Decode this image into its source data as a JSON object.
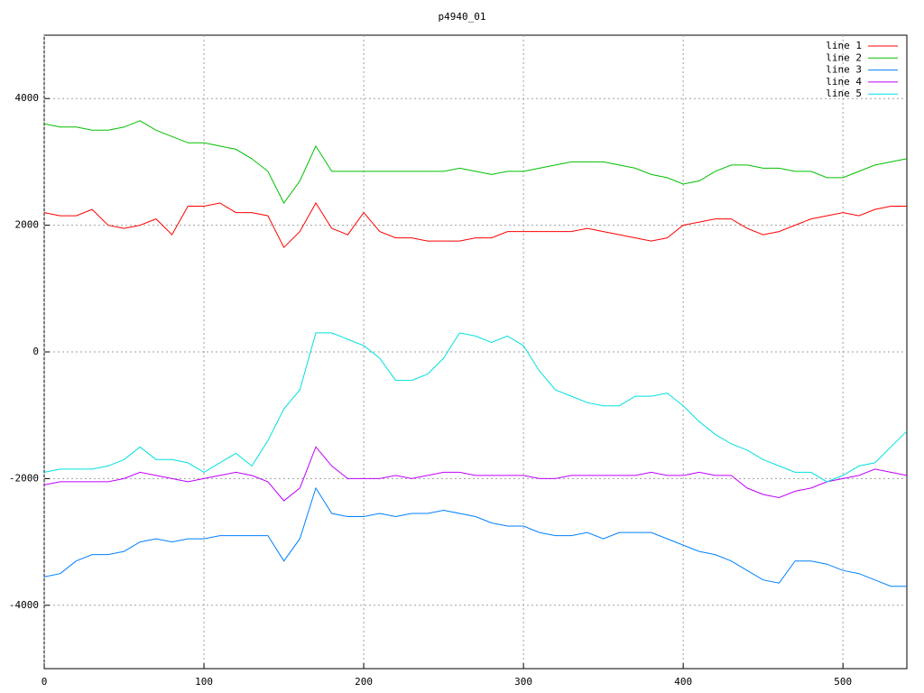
{
  "chart_data": {
    "type": "line",
    "title": "p4940_01",
    "x": [
      0,
      10,
      20,
      30,
      40,
      50,
      60,
      70,
      80,
      90,
      100,
      110,
      120,
      130,
      140,
      150,
      160,
      170,
      180,
      190,
      200,
      210,
      220,
      230,
      240,
      250,
      260,
      270,
      280,
      290,
      300,
      310,
      320,
      330,
      340,
      350,
      360,
      370,
      380,
      390,
      400,
      410,
      420,
      430,
      440,
      450,
      460,
      470,
      480,
      490,
      500,
      510,
      520,
      530,
      540
    ],
    "xlim": [
      0,
      540
    ],
    "xticks": [
      0,
      100,
      200,
      300,
      400,
      500
    ],
    "ylim": [
      -5000,
      5000
    ],
    "yticks": [
      -4000,
      -2000,
      0,
      2000,
      4000
    ],
    "grid": true,
    "legend": "top-right",
    "series": [
      {
        "name": "line 1",
        "color": "#ff0000",
        "values": [
          2200,
          2150,
          2150,
          2250,
          2000,
          1950,
          2000,
          2100,
          1850,
          2300,
          2300,
          2350,
          2200,
          2200,
          2150,
          1650,
          1900,
          2350,
          1950,
          1850,
          2200,
          1900,
          1800,
          1800,
          1750,
          1750,
          1750,
          1800,
          1800,
          1900,
          1900,
          1900,
          1900,
          1900,
          1950,
          1900,
          1850,
          1800,
          1750,
          1800,
          2000,
          2050,
          2100,
          2100,
          1950,
          1850,
          1900,
          2000,
          2100,
          2150,
          2200,
          2150,
          2250,
          2300,
          2300
        ]
      },
      {
        "name": "line 2",
        "color": "#00c000",
        "values": [
          3600,
          3550,
          3550,
          3500,
          3500,
          3550,
          3650,
          3500,
          3400,
          3300,
          3300,
          3250,
          3200,
          3050,
          2850,
          2350,
          2700,
          3250,
          2850,
          2850,
          2850,
          2850,
          2850,
          2850,
          2850,
          2850,
          2900,
          2850,
          2800,
          2850,
          2850,
          2900,
          2950,
          3000,
          3000,
          3000,
          2950,
          2900,
          2800,
          2750,
          2650,
          2700,
          2850,
          2950,
          2950,
          2900,
          2900,
          2850,
          2850,
          2750,
          2750,
          2850,
          2950,
          3000,
          3050
        ]
      },
      {
        "name": "line 3",
        "color": "#0080ff",
        "values": [
          -3550,
          -3500,
          -3300,
          -3200,
          -3200,
          -3150,
          -3000,
          -2950,
          -3000,
          -2950,
          -2950,
          -2900,
          -2900,
          -2900,
          -2900,
          -3300,
          -2950,
          -2150,
          -2550,
          -2600,
          -2600,
          -2550,
          -2600,
          -2550,
          -2550,
          -2500,
          -2550,
          -2600,
          -2700,
          -2750,
          -2750,
          -2850,
          -2900,
          -2900,
          -2850,
          -2950,
          -2850,
          -2850,
          -2850,
          -2950,
          -3050,
          -3150,
          -3200,
          -3300,
          -3450,
          -3600,
          -3650,
          -3300,
          -3300,
          -3350,
          -3450,
          -3500,
          -3600,
          -3700,
          -3700
        ]
      },
      {
        "name": "line 4",
        "color": "#c000ff",
        "values": [
          -2100,
          -2050,
          -2050,
          -2050,
          -2050,
          -2000,
          -1900,
          -1950,
          -2000,
          -2050,
          -2000,
          -1950,
          -1900,
          -1950,
          -2050,
          -2350,
          -2150,
          -1500,
          -1800,
          -2000,
          -2000,
          -2000,
          -1950,
          -2000,
          -1950,
          -1900,
          -1900,
          -1950,
          -1950,
          -1950,
          -1950,
          -2000,
          -2000,
          -1950,
          -1950,
          -1950,
          -1950,
          -1950,
          -1900,
          -1950,
          -1950,
          -1900,
          -1950,
          -1950,
          -2150,
          -2250,
          -2300,
          -2200,
          -2150,
          -2050,
          -2000,
          -1950,
          -1850,
          -1900,
          -1950
        ]
      },
      {
        "name": "line 5",
        "color": "#00e0e0",
        "values": [
          -1900,
          -1850,
          -1850,
          -1850,
          -1800,
          -1700,
          -1500,
          -1700,
          -1700,
          -1750,
          -1900,
          -1750,
          -1600,
          -1800,
          -1400,
          -900,
          -600,
          300,
          300,
          200,
          100,
          -100,
          -450,
          -450,
          -350,
          -100,
          300,
          250,
          150,
          250,
          100,
          -300,
          -600,
          -700,
          -800,
          -850,
          -850,
          -700,
          -700,
          -650,
          -850,
          -1100,
          -1300,
          -1450,
          -1550,
          -1700,
          -1800,
          -1900,
          -1900,
          -2050,
          -1950,
          -1800,
          -1750,
          -1500,
          -1250
        ]
      }
    ]
  }
}
